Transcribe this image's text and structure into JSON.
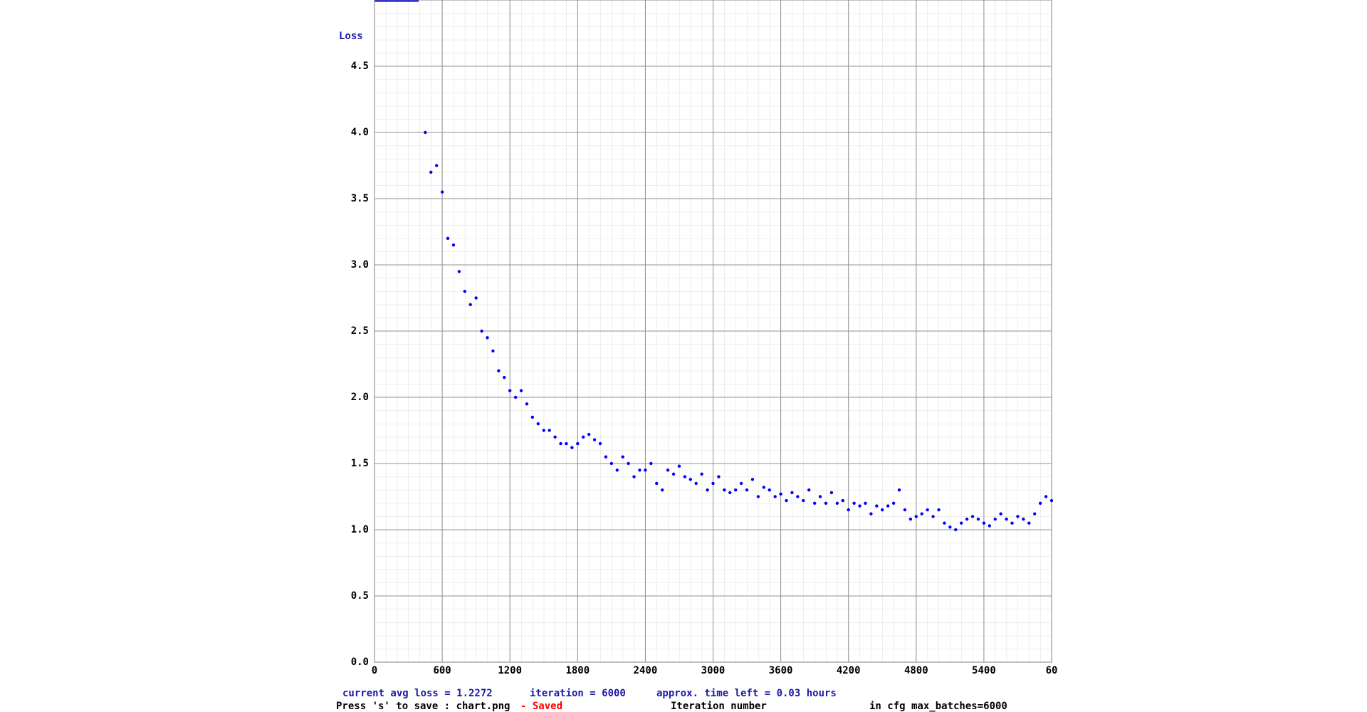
{
  "chart_data": {
    "type": "scatter",
    "ylabel": "Loss",
    "xlabel": "Iteration number",
    "status": [
      "current avg loss = 1.2272",
      "iteration = 6000",
      "approx. time left = 0.03 hours"
    ],
    "save_hint": "Press 's' to save : chart.png",
    "save_state": "- Saved",
    "config_note": "in cfg max_batches=6000",
    "color": "#0000ff",
    "xlim": [
      0,
      6000
    ],
    "ylim": [
      0,
      5
    ],
    "xticks": [
      0,
      600,
      1200,
      1800,
      2400,
      3000,
      3600,
      4200,
      4800,
      5400,
      {
        "value": 6000,
        "label": "60"
      }
    ],
    "yticks": [
      {
        "value": 0,
        "label": "0.0"
      },
      0.5,
      {
        "value": 1,
        "label": "1.0"
      },
      1.5,
      {
        "value": 2,
        "label": "2.0"
      },
      2.5,
      {
        "value": 3,
        "label": "3.0"
      },
      3.5,
      {
        "value": 4,
        "label": "4.0"
      },
      4.5
    ],
    "grid": true,
    "x": [
      450,
      500,
      550,
      600,
      650,
      700,
      750,
      800,
      850,
      900,
      950,
      1000,
      1050,
      1100,
      1150,
      1200,
      1250,
      1300,
      1350,
      1400,
      1450,
      1500,
      1550,
      1600,
      1650,
      1700,
      1750,
      1800,
      1850,
      1900,
      1950,
      2000,
      2050,
      2100,
      2150,
      2200,
      2250,
      2300,
      2350,
      2400,
      2450,
      2500,
      2550,
      2600,
      2650,
      2700,
      2750,
      2800,
      2850,
      2900,
      2950,
      3000,
      3050,
      3100,
      3150,
      3200,
      3250,
      3300,
      3350,
      3400,
      3450,
      3500,
      3550,
      3600,
      3650,
      3700,
      3750,
      3800,
      3850,
      3900,
      3950,
      4000,
      4050,
      4100,
      4150,
      4200,
      4250,
      4300,
      4350,
      4400,
      4450,
      4500,
      4550,
      4600,
      4650,
      4700,
      4750,
      4800,
      4850,
      4900,
      4950,
      5000,
      5050,
      5100,
      5150,
      5200,
      5250,
      5300,
      5350,
      5400,
      5450,
      5500,
      5550,
      5600,
      5650,
      5700,
      5750,
      5800,
      5850,
      5900,
      5950,
      6000
    ],
    "values": [
      4.0,
      3.7,
      3.75,
      3.55,
      3.2,
      3.15,
      2.95,
      2.8,
      2.7,
      2.75,
      2.5,
      2.45,
      2.35,
      2.2,
      2.15,
      2.05,
      2.0,
      2.05,
      1.95,
      1.85,
      1.8,
      1.75,
      1.75,
      1.7,
      1.65,
      1.65,
      1.62,
      1.65,
      1.7,
      1.72,
      1.68,
      1.65,
      1.55,
      1.5,
      1.45,
      1.55,
      1.5,
      1.4,
      1.45,
      1.45,
      1.5,
      1.35,
      1.3,
      1.45,
      1.42,
      1.48,
      1.4,
      1.38,
      1.35,
      1.42,
      1.3,
      1.35,
      1.4,
      1.3,
      1.28,
      1.3,
      1.35,
      1.3,
      1.38,
      1.25,
      1.32,
      1.3,
      1.25,
      1.27,
      1.22,
      1.28,
      1.25,
      1.22,
      1.3,
      1.2,
      1.25,
      1.2,
      1.28,
      1.2,
      1.22,
      1.15,
      1.2,
      1.18,
      1.2,
      1.12,
      1.18,
      1.15,
      1.18,
      1.2,
      1.3,
      1.15,
      1.08,
      1.1,
      1.12,
      1.15,
      1.1,
      1.15,
      1.05,
      1.02,
      1.0,
      1.05,
      1.08,
      1.1,
      1.08,
      1.05,
      1.03,
      1.08,
      1.12,
      1.08,
      1.05,
      1.1,
      1.08,
      1.05,
      1.12,
      1.2,
      1.25,
      1.22
    ]
  }
}
